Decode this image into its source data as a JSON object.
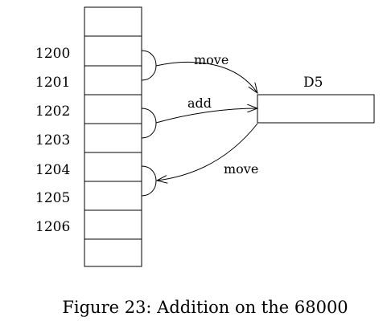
{
  "memory": {
    "addresses": [
      "1200",
      "1201",
      "1202",
      "1203",
      "1204",
      "1205",
      "1206"
    ]
  },
  "register": {
    "label": "D5"
  },
  "arrows": {
    "top": "move",
    "middle": "add",
    "bottom": "move"
  },
  "caption": "Figure 23: Addition on the 68000"
}
